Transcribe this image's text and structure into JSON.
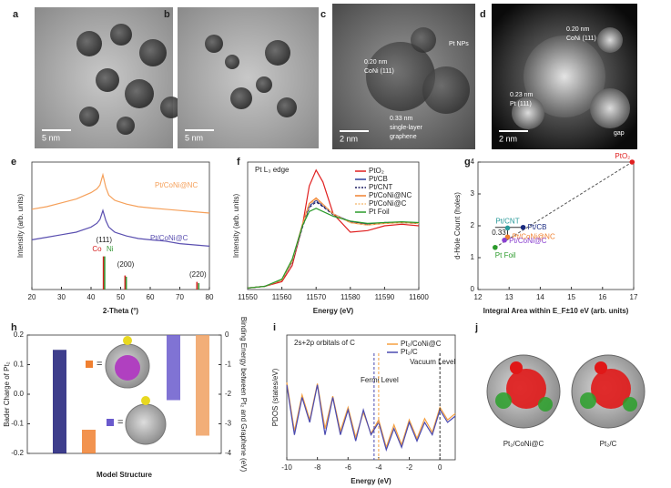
{
  "images": [
    {
      "label": "a",
      "scale_bar": "5 nm"
    },
    {
      "label": "b",
      "scale_bar": "5 nm"
    },
    {
      "label": "c",
      "scale_bar": "2 nm",
      "annotations": [
        "0.20 nm",
        "CoNi (111)",
        "Pt NPs",
        "0.33 nm",
        "single-layer",
        "graphene"
      ]
    },
    {
      "label": "d",
      "scale_bar": "2 nm",
      "annotations": [
        "0.20 nm",
        "CoNi (111)",
        "0.23 nm",
        "Pt (111)",
        "gap"
      ]
    }
  ],
  "chart_data": [
    {
      "label": "e",
      "type": "line",
      "xlabel": "2-Theta (°)",
      "ylabel": "Intensity (arb. units)",
      "xlim": [
        20,
        80
      ],
      "xticks": [
        20,
        30,
        40,
        50,
        60,
        70,
        80
      ],
      "ylim": [
        0,
        10
      ],
      "x": [
        20,
        25,
        30,
        35,
        40,
        42,
        43,
        44,
        45,
        46,
        48,
        52,
        56,
        60,
        65,
        70,
        75,
        80
      ],
      "series": [
        {
          "name": "Pt/CoNi@NC",
          "color": "#f5a05a",
          "values": [
            6.3,
            6.5,
            6.8,
            7.1,
            7.6,
            7.9,
            8.2,
            9.0,
            8.0,
            7.4,
            7.0,
            6.7,
            6.5,
            6.4,
            6.3,
            6.2,
            6.1,
            6.0
          ]
        },
        {
          "name": "Pt/CoNi@C",
          "color": "#5a4fb0",
          "values": [
            3.9,
            4.1,
            4.3,
            4.5,
            4.9,
            5.2,
            5.5,
            6.2,
            5.4,
            4.9,
            4.5,
            4.2,
            4.0,
            3.9,
            3.8,
            3.6,
            3.5,
            3.4
          ]
        }
      ],
      "sticks": [
        {
          "name": "Co",
          "color": "#d62020",
          "x": [
            44.2,
            51.5,
            75.8
          ],
          "values": [
            2.6,
            1.1,
            0.6
          ]
        },
        {
          "name": "Ni",
          "color": "#3a9a3a",
          "x": [
            44.6,
            51.9,
            76.4
          ],
          "values": [
            2.6,
            1.0,
            0.5
          ]
        }
      ],
      "annotations": [
        "(111)",
        "(200)",
        "(220)"
      ]
    },
    {
      "label": "f",
      "type": "line",
      "title": "Pt L₃ edge",
      "xlabel": "Energy (eV)",
      "ylabel": "Intensity (arb. units)",
      "xlim": [
        11550,
        11600
      ],
      "xticks": [
        11550,
        11560,
        11570,
        11580,
        11590,
        11600
      ],
      "ylim": [
        0,
        1.6
      ],
      "x": [
        11550,
        11555,
        11560,
        11563,
        11566,
        11568,
        11570,
        11572,
        11575,
        11580,
        11585,
        11590,
        11595,
        11600
      ],
      "series": [
        {
          "name": "PtO₂",
          "color": "#e02020",
          "dashed": false,
          "values": [
            0.02,
            0.04,
            0.1,
            0.3,
            0.8,
            1.3,
            1.5,
            1.35,
            0.95,
            0.72,
            0.74,
            0.8,
            0.82,
            0.8
          ]
        },
        {
          "name": "Pt/CB",
          "color": "#2a3f9e",
          "dashed": false,
          "values": [
            0.02,
            0.04,
            0.12,
            0.35,
            0.8,
            1.05,
            1.12,
            1.05,
            0.95,
            0.85,
            0.82,
            0.84,
            0.84,
            0.83
          ]
        },
        {
          "name": "Pt/CNT",
          "color": "#1a1a60",
          "dashed": true,
          "values": [
            0.02,
            0.04,
            0.12,
            0.34,
            0.78,
            1.03,
            1.1,
            1.04,
            0.94,
            0.85,
            0.82,
            0.84,
            0.84,
            0.83
          ]
        },
        {
          "name": "Pt/CoNi@NC",
          "color": "#f08030",
          "dashed": false,
          "values": [
            0.02,
            0.04,
            0.12,
            0.36,
            0.82,
            1.08,
            1.15,
            1.07,
            0.95,
            0.84,
            0.81,
            0.83,
            0.84,
            0.83
          ]
        },
        {
          "name": "Pt/CoNi@C",
          "color": "#f5c080",
          "dashed": true,
          "values": [
            0.02,
            0.04,
            0.12,
            0.35,
            0.8,
            1.06,
            1.13,
            1.06,
            0.95,
            0.84,
            0.81,
            0.83,
            0.84,
            0.83
          ]
        },
        {
          "name": "Pt Foil",
          "color": "#2a9a2a",
          "dashed": false,
          "values": [
            0.02,
            0.04,
            0.13,
            0.38,
            0.8,
            0.98,
            1.02,
            0.98,
            0.92,
            0.86,
            0.83,
            0.84,
            0.85,
            0.84
          ]
        }
      ]
    },
    {
      "label": "g",
      "type": "scatter",
      "xlabel": "Integral Area within E_F±10 eV (arb. units)",
      "ylabel": "d-Hole Count (holes)",
      "xlim": [
        12,
        17
      ],
      "xticks": [
        12,
        13,
        14,
        15,
        16,
        17
      ],
      "ylim": [
        0,
        4
      ],
      "yticks": [
        0,
        1,
        2,
        3,
        4
      ],
      "series": [
        {
          "name": "PtO₂",
          "color": "#e02020",
          "x": [
            16.95
          ],
          "values": [
            4.0
          ]
        },
        {
          "name": "Pt/CNT",
          "color": "#2a9a9a",
          "x": [
            12.95
          ],
          "values": [
            1.93
          ]
        },
        {
          "name": "Pt/CB",
          "color": "#1a2a80",
          "x": [
            13.45
          ],
          "values": [
            1.95
          ]
        },
        {
          "name": "Pt/CoNi@NC",
          "color": "#f08030",
          "x": [
            12.95
          ],
          "values": [
            1.65
          ]
        },
        {
          "name": "Pt/CoNi@C",
          "color": "#8a40d0",
          "x": [
            12.85
          ],
          "values": [
            1.55
          ]
        },
        {
          "name": "Pt Foil",
          "color": "#2a9a2a",
          "x": [
            12.55
          ],
          "values": [
            1.32
          ]
        }
      ],
      "annotations": [
        "0.33"
      ]
    },
    {
      "label": "h",
      "type": "bar",
      "xlabel": "Model Structure",
      "ylabel": "Bader Charge of Pt₂",
      "y2label": "Binding Energy between Pt₂ and Graphene (eV)",
      "ylim": [
        -0.2,
        0.2
      ],
      "yticks": [
        -0.2,
        -0.1,
        {
          "value": 0,
          "label": "0.0"
        },
        0.1,
        0.2
      ],
      "y2lim": [
        -4,
        0
      ],
      "y2ticks": [
        -4,
        -3,
        -2,
        -1,
        0
      ],
      "bars": [
        {
          "color": "#1c1c78",
          "value": 0.15,
          "axis": "y"
        },
        {
          "color": "#f08030",
          "value": -0.12,
          "axis": "y"
        },
        {
          "color": "#6a5acd",
          "value": -2.2,
          "axis": "y2"
        },
        {
          "color": "#f0a060",
          "value": -3.4,
          "axis": "y2"
        }
      ]
    },
    {
      "label": "i",
      "type": "line",
      "title": "2s+2p orbitals of C",
      "xlabel": "Energy (eV)",
      "ylabel": "PDOS (states/eV)",
      "xlim": [
        -10,
        1
      ],
      "xticks": [
        -10,
        -8,
        -6,
        -4,
        -2,
        0
      ],
      "ylim": [
        0,
        10
      ],
      "x": [
        -10,
        -9.5,
        -9,
        -8.5,
        -8,
        -7.5,
        -7,
        -6.5,
        -6,
        -5.5,
        -5,
        -4.5,
        -4,
        -3.5,
        -3,
        -2.5,
        -2,
        -1.5,
        -1,
        -0.5,
        0,
        0.5,
        1
      ],
      "series": [
        {
          "name": "Pt₂/CoNi@C",
          "color": "#f5a040",
          "dashed": false,
          "values": [
            6.2,
            2.3,
            5.2,
            3.2,
            6.1,
            2.5,
            5.1,
            2.3,
            4.2,
            1.8,
            3.8,
            2.1,
            3.2,
            1,
            2.8,
            1.2,
            3.2,
            1.7,
            3.3,
            2.2,
            4.2,
            3.2,
            3.7
          ]
        },
        {
          "name": "Pt₂/C",
          "color": "#4a4ab0",
          "dashed": false,
          "values": [
            6,
            2,
            5,
            3,
            6,
            2,
            5,
            2,
            4,
            1.5,
            4,
            2,
            3,
            0.8,
            2.5,
            1,
            3,
            1.5,
            3,
            2,
            4,
            3,
            3.5
          ]
        }
      ],
      "vlines": [
        {
          "text": "Fermi Level",
          "value": -4.3,
          "color": "#4a4ab0"
        },
        {
          "value": -4.0,
          "color": "#f5a040"
        },
        {
          "text": "Vacuum Level",
          "value": 0,
          "color": "#333333"
        }
      ]
    }
  ],
  "models": {
    "label": "j",
    "names": [
      "Pt₂/CoNi@C",
      "Pt₂/C"
    ]
  }
}
